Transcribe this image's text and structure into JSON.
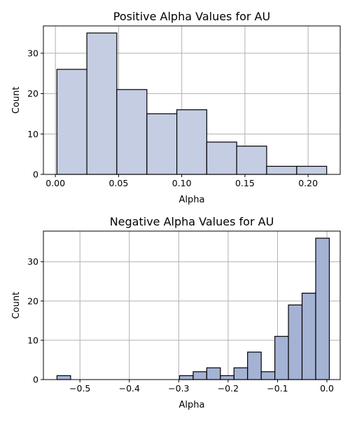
{
  "chart_data": [
    {
      "type": "bar",
      "title": "Positive Alpha Values for AU",
      "xlabel": "Alpha",
      "ylabel": "Count",
      "bin_edges": [
        0.0012,
        0.0249,
        0.0486,
        0.0724,
        0.0961,
        0.1198,
        0.1435,
        0.1672,
        0.191,
        0.2147
      ],
      "values": [
        26,
        35,
        21,
        15,
        16,
        8,
        7,
        2,
        2
      ],
      "xlim": [
        -0.0095,
        0.2254
      ],
      "ylim": [
        0,
        36.75
      ],
      "xticks": [
        0.0,
        0.05,
        0.1,
        0.15,
        0.2
      ],
      "xtick_labels": [
        "0.00",
        "0.05",
        "0.10",
        "0.15",
        "0.20"
      ],
      "yticks": [
        0,
        10,
        20,
        30
      ],
      "ytick_labels": [
        "0",
        "10",
        "20",
        "30"
      ],
      "bar_color": "#c4cde2",
      "grid": true
    },
    {
      "type": "bar",
      "title": "Negative Alpha Values for AU",
      "xlabel": "Alpha",
      "ylabel": "Count",
      "bin_edges": [
        -0.5465,
        -0.5189,
        -0.4914,
        -0.4638,
        -0.4362,
        -0.4087,
        -0.3811,
        -0.3535,
        -0.326,
        -0.2984,
        -0.2708,
        -0.2433,
        -0.2157,
        -0.1881,
        -0.1606,
        -0.133,
        -0.1054,
        -0.0779,
        -0.0503,
        -0.0227,
        0.0049
      ],
      "values": [
        1,
        0,
        0,
        0,
        0,
        0,
        0,
        0,
        0,
        1,
        2,
        3,
        1,
        3,
        7,
        2,
        11,
        19,
        22,
        36
      ],
      "xlim": [
        -0.574,
        0.0269
      ],
      "ylim": [
        0,
        37.8
      ],
      "xticks": [
        -0.5,
        -0.4,
        -0.3,
        -0.2,
        -0.1,
        0.0
      ],
      "xtick_labels": [
        "−0.5",
        "−0.4",
        "−0.3",
        "−0.2",
        "−0.1",
        "0.0"
      ],
      "yticks": [
        0,
        10,
        20,
        30
      ],
      "ytick_labels": [
        "0",
        "10",
        "20",
        "30"
      ],
      "bar_color": "#a4b2d4",
      "grid": true
    }
  ]
}
